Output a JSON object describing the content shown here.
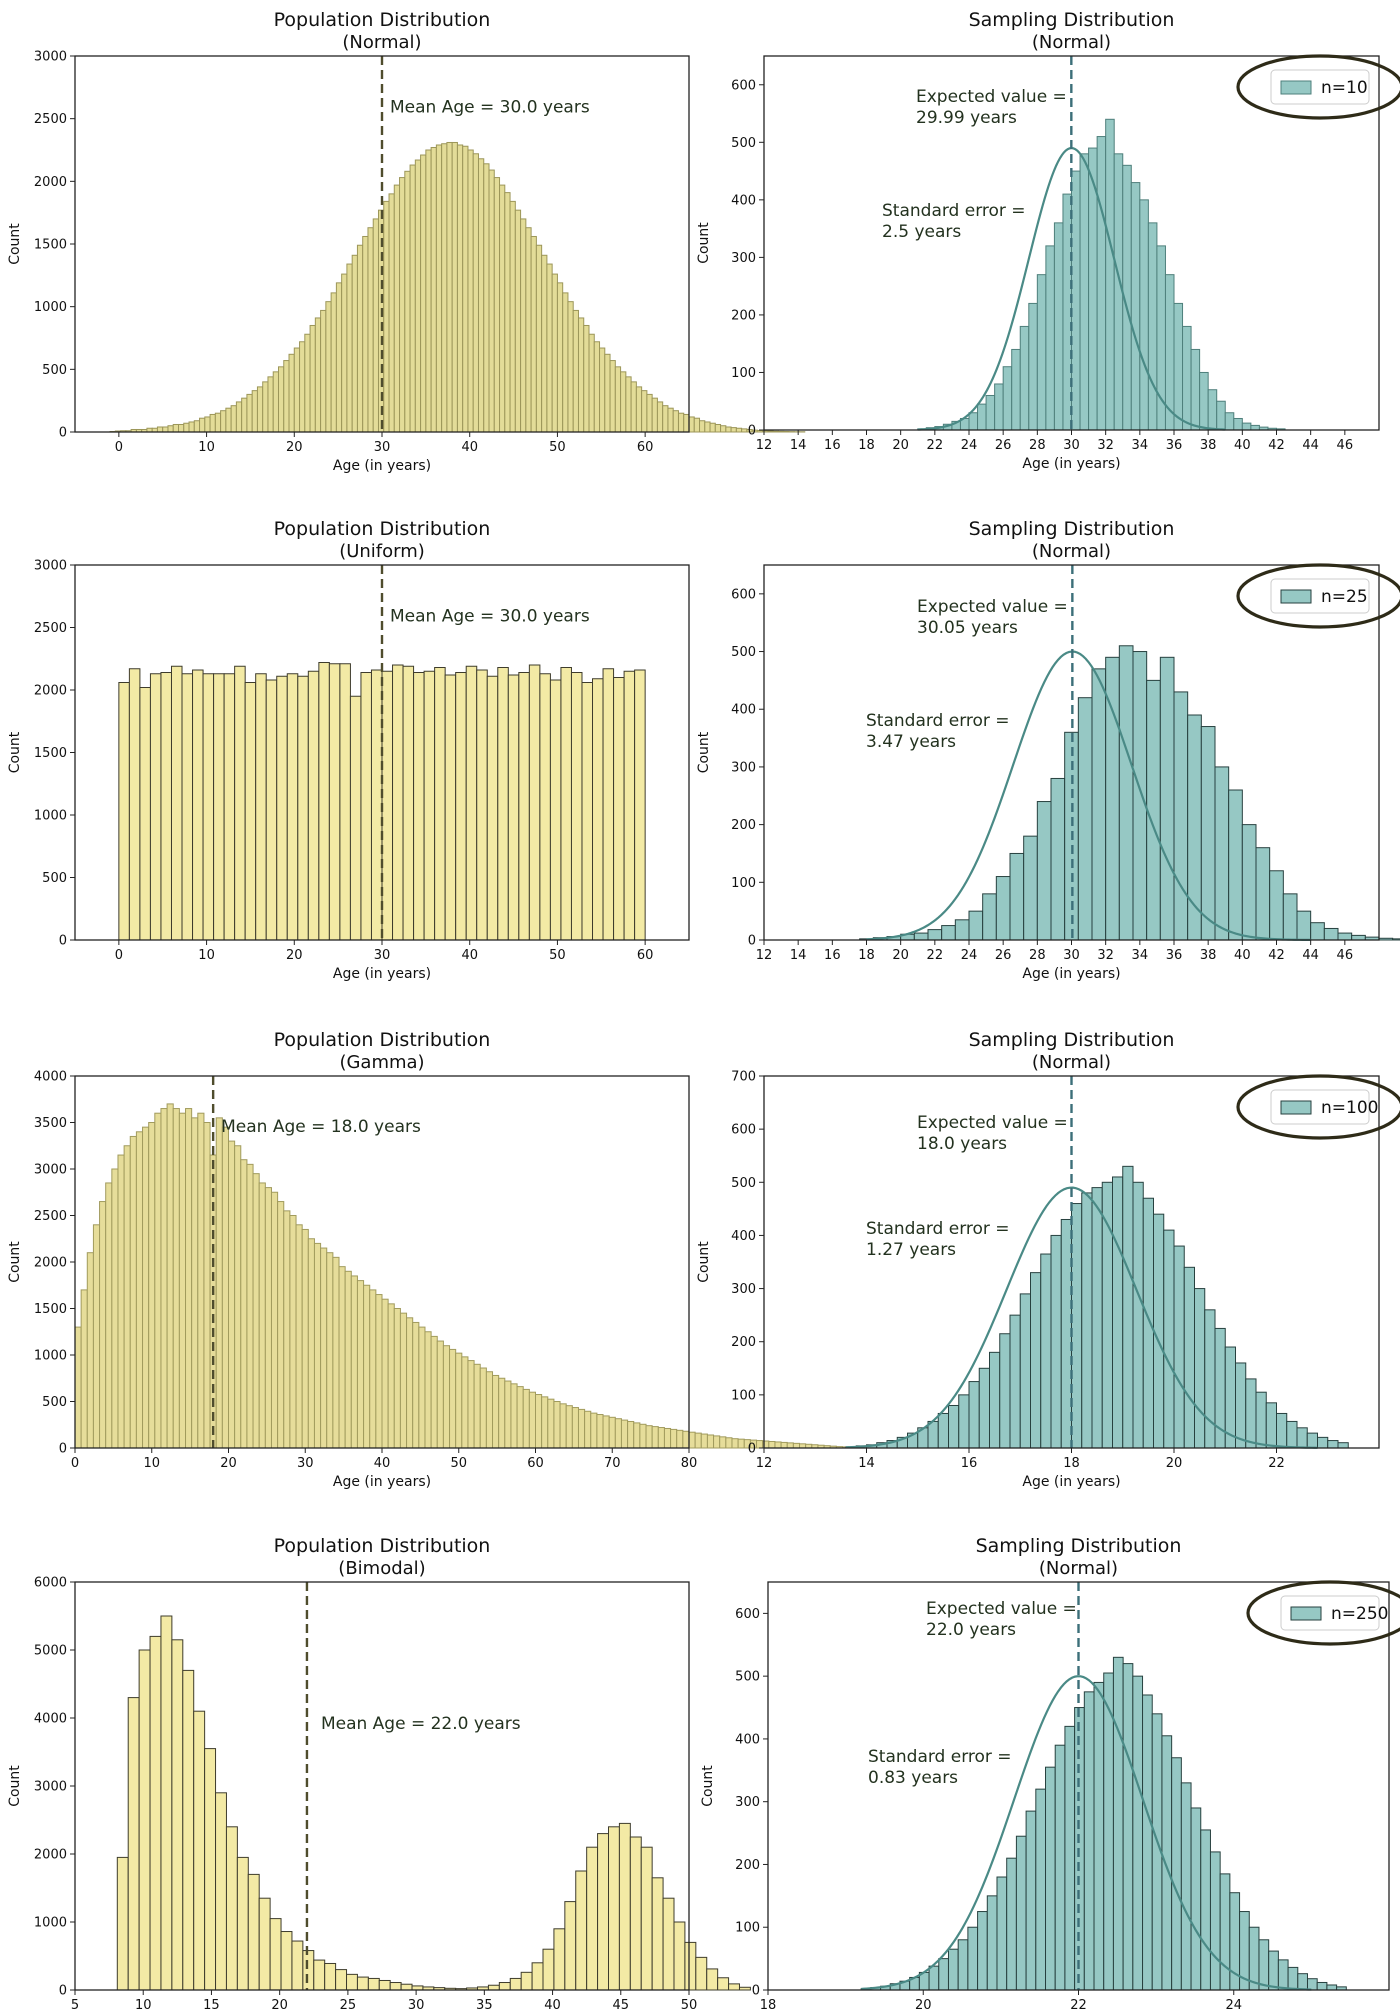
{
  "chart_data": [
    {
      "type": "bar",
      "title": "Population Distribution",
      "subtitle": "(Normal)",
      "xlabel": "Age (in years)",
      "ylabel": "Count",
      "xlim": [
        -5,
        65
      ],
      "ylim": [
        0,
        3000
      ],
      "xticks": [
        0,
        10,
        20,
        30,
        40,
        50,
        60
      ],
      "yticks": [
        0,
        500,
        1000,
        1500,
        2000,
        2500,
        3000
      ],
      "bar_color": "#e3dc98",
      "edge_color": "#9c9659",
      "bins": {
        "start": -1,
        "width": 0.6,
        "values": [
          4,
          8,
          10,
          10,
          20,
          20,
          20,
          30,
          30,
          40,
          40,
          50,
          60,
          60,
          70,
          80,
          90,
          110,
          120,
          140,
          150,
          170,
          190,
          210,
          240,
          270,
          300,
          330,
          360,
          400,
          440,
          480,
          520,
          570,
          620,
          670,
          720,
          780,
          850,
          910,
          970,
          1040,
          1110,
          1190,
          1260,
          1340,
          1410,
          1490,
          1560,
          1630,
          1700,
          1770,
          1840,
          1900,
          1970,
          2030,
          2080,
          2130,
          2170,
          2210,
          2250,
          2270,
          2290,
          2300,
          2310,
          2310,
          2290,
          2280,
          2250,
          2220,
          2180,
          2140,
          2090,
          2030,
          1970,
          1910,
          1840,
          1770,
          1700,
          1630,
          1560,
          1490,
          1410,
          1340,
          1260,
          1190,
          1110,
          1040,
          970,
          910,
          850,
          780,
          720,
          670,
          620,
          570,
          520,
          480,
          440,
          400,
          360,
          330,
          300,
          270,
          240,
          210,
          190,
          170,
          150,
          140,
          120,
          110,
          90,
          80,
          70,
          60,
          50,
          40,
          35,
          30,
          25,
          20,
          15,
          12,
          10,
          8,
          6,
          5,
          4,
          3,
          2,
          2
        ]
      },
      "mean_line": 30.0,
      "annotations": [
        "Mean Age = 30.0 years"
      ]
    },
    {
      "type": "bar",
      "title": "Sampling Distribution",
      "subtitle": "(Normal)",
      "xlabel": "Age (in years)",
      "ylabel": "Count",
      "xlim": [
        12,
        48
      ],
      "ylim": [
        0,
        650
      ],
      "xticks": [
        12,
        14,
        16,
        18,
        20,
        22,
        24,
        26,
        28,
        30,
        32,
        34,
        36,
        38,
        40,
        42,
        44,
        46
      ],
      "yticks": [
        0,
        100,
        200,
        300,
        400,
        500,
        600
      ],
      "bar_color": "#96c8c4",
      "edge_color": "#4e7f7b",
      "curve_color": "#4a8a86",
      "legend": "n=10",
      "legend_position": "top-right",
      "bins": {
        "start": 21,
        "width": 0.5,
        "values": [
          2,
          4,
          6,
          10,
          15,
          20,
          30,
          45,
          60,
          80,
          110,
          140,
          180,
          220,
          270,
          320,
          360,
          410,
          450,
          480,
          490,
          510,
          540,
          480,
          460,
          430,
          400,
          360,
          320,
          270,
          220,
          180,
          140,
          100,
          70,
          50,
          30,
          20,
          12,
          8,
          5,
          3,
          2
        ]
      },
      "curve": {
        "mean": 30,
        "sd": 2.5,
        "peak": 490,
        "from": 21,
        "to": 39
      },
      "mean_line": 29.99,
      "annotations": [
        "Expected value =",
        "29.99 years",
        "Standard error =",
        "2.5 years"
      ]
    },
    {
      "type": "bar",
      "title": "Population Distribution",
      "subtitle": "(Uniform)",
      "xlabel": "Age (in years)",
      "ylabel": "Count",
      "xlim": [
        -5,
        65
      ],
      "ylim": [
        0,
        3000
      ],
      "xticks": [
        0,
        10,
        20,
        30,
        40,
        50,
        60
      ],
      "yticks": [
        0,
        500,
        1000,
        1500,
        2000,
        2500,
        3000
      ],
      "bar_color": "#f3eaa5",
      "edge_color": "#3e3c2c",
      "bins": {
        "start": 0,
        "width": 1.2,
        "values": [
          2060,
          2170,
          2020,
          2130,
          2140,
          2190,
          2130,
          2160,
          2130,
          2130,
          2130,
          2190,
          2060,
          2130,
          2080,
          2110,
          2130,
          2110,
          2150,
          2220,
          2210,
          2210,
          1950,
          2140,
          2160,
          2150,
          2200,
          2190,
          2140,
          2150,
          2180,
          2120,
          2140,
          2190,
          2160,
          2110,
          2180,
          2120,
          2140,
          2200,
          2130,
          2080,
          2180,
          2140,
          2060,
          2090,
          2170,
          2100,
          2150,
          2160
        ]
      },
      "mean_line": 30.0,
      "annotations": [
        "Mean Age = 30.0 years"
      ]
    },
    {
      "type": "bar",
      "title": "Sampling Distribution",
      "subtitle": "(Normal)",
      "xlabel": "Age (in years)",
      "ylabel": "Count",
      "xlim": [
        12,
        48
      ],
      "ylim": [
        0,
        650
      ],
      "xticks": [
        12,
        14,
        16,
        18,
        20,
        22,
        24,
        26,
        28,
        30,
        32,
        34,
        36,
        38,
        40,
        42,
        44,
        46
      ],
      "yticks": [
        0,
        100,
        200,
        300,
        400,
        500,
        600
      ],
      "bar_color": "#96c8c4",
      "edge_color": "#27413f",
      "curve_color": "#4a8a86",
      "legend": "n=25",
      "legend_position": "top-right",
      "bins": {
        "start": 17.6,
        "width": 0.8,
        "values": [
          2,
          4,
          6,
          10,
          12,
          18,
          25,
          35,
          50,
          80,
          110,
          150,
          180,
          240,
          280,
          360,
          420,
          470,
          490,
          510,
          500,
          450,
          490,
          430,
          390,
          370,
          300,
          260,
          200,
          160,
          120,
          80,
          50,
          30,
          20,
          12,
          8,
          5,
          3,
          2
        ]
      },
      "curve": {
        "mean": 30.05,
        "sd": 3.47,
        "peak": 500,
        "from": 18,
        "to": 44
      },
      "mean_line": 30.05,
      "annotations": [
        "Expected value =",
        "30.05 years",
        "Standard error =",
        "3.47 years"
      ]
    },
    {
      "type": "bar",
      "title": "Population Distribution",
      "subtitle": "(Gamma)",
      "xlabel": "Age (in years)",
      "ylabel": "Count",
      "xlim": [
        0,
        80
      ],
      "ylim": [
        0,
        4000
      ],
      "xticks": [
        0,
        10,
        20,
        30,
        40,
        50,
        60,
        70,
        80
      ],
      "yticks": [
        0,
        500,
        1000,
        1500,
        2000,
        2500,
        3000,
        3500,
        4000
      ],
      "bar_color": "#e6dd9a",
      "edge_color": "#a19b5d",
      "bins": {
        "start": 0,
        "width": 0.8,
        "values": [
          1300,
          1700,
          2100,
          2400,
          2650,
          2850,
          3000,
          3150,
          3250,
          3350,
          3400,
          3450,
          3500,
          3600,
          3650,
          3700,
          3650,
          3600,
          3650,
          3550,
          3600,
          3500,
          3150,
          3550,
          3450,
          3300,
          3250,
          3100,
          3050,
          2950,
          2850,
          2800,
          2750,
          2650,
          2550,
          2500,
          2400,
          2350,
          2250,
          2200,
          2150,
          2100,
          2050,
          1950,
          1900,
          1850,
          1800,
          1750,
          1700,
          1650,
          1600,
          1550,
          1500,
          1450,
          1400,
          1350,
          1300,
          1250,
          1200,
          1150,
          1100,
          1060,
          1020,
          980,
          940,
          900,
          860,
          820,
          780,
          750,
          720,
          690,
          660,
          630,
          600,
          575,
          550,
          525,
          500,
          475,
          455,
          435,
          415,
          395,
          375,
          360,
          345,
          330,
          315,
          300,
          285,
          270,
          255,
          240,
          230,
          220,
          210,
          200,
          190,
          180,
          170,
          160,
          150,
          140,
          130,
          120,
          110,
          100,
          95,
          90,
          85,
          80,
          75,
          70,
          65,
          60,
          55,
          50,
          45,
          40,
          35,
          30,
          25,
          20,
          15,
          12,
          10,
          8,
          6,
          4,
          3,
          2,
          2,
          1,
          1,
          1,
          1,
          1,
          1,
          1
        ]
      },
      "mean_line": 18.0,
      "annotations": [
        "Mean Age = 18.0 years"
      ]
    },
    {
      "type": "bar",
      "title": "Sampling Distribution",
      "subtitle": "(Normal)",
      "xlabel": "Age (in years)",
      "ylabel": "Count",
      "xlim": [
        12,
        24
      ],
      "ylim": [
        0,
        700
      ],
      "xticks": [
        12,
        14,
        16,
        18,
        20,
        22
      ],
      "yticks": [
        0,
        100,
        200,
        300,
        400,
        500,
        600,
        700
      ],
      "bar_color": "#96c8c4",
      "edge_color": "#27413f",
      "curve_color": "#4a8a86",
      "legend": "n=100",
      "legend_position": "top-right",
      "bins": {
        "start": 13.6,
        "width": 0.2,
        "values": [
          2,
          4,
          6,
          10,
          14,
          20,
          28,
          38,
          50,
          65,
          80,
          100,
          125,
          150,
          180,
          215,
          250,
          290,
          330,
          365,
          400,
          430,
          460,
          480,
          490,
          500,
          510,
          530,
          500,
          470,
          440,
          410,
          380,
          340,
          300,
          260,
          225,
          190,
          160,
          130,
          105,
          85,
          65,
          50,
          38,
          28,
          20,
          14,
          10
        ]
      },
      "curve": {
        "mean": 18.0,
        "sd": 1.27,
        "peak": 490,
        "from": 13.6,
        "to": 22.8
      },
      "mean_line": 18.0,
      "annotations": [
        "Expected value =",
        "18.0 years",
        "Standard error =",
        "1.27 years"
      ]
    },
    {
      "type": "bar",
      "title": "Population Distribution",
      "subtitle": "(Bimodal)",
      "xlabel": "Age (in years)",
      "ylabel": "Count",
      "xlim": [
        5,
        50
      ],
      "ylim": [
        0,
        6000
      ],
      "xticks": [
        5,
        10,
        15,
        20,
        25,
        30,
        35,
        40,
        45,
        50
      ],
      "yticks": [
        0,
        1000,
        2000,
        3000,
        4000,
        5000,
        6000
      ],
      "bar_color": "#f3eaa5",
      "edge_color": "#3e3c2c",
      "bins": {
        "start": 8.1,
        "width": 0.8,
        "values": [
          1950,
          4300,
          5000,
          5200,
          5500,
          5150,
          4700,
          4100,
          3550,
          2900,
          2400,
          1950,
          1700,
          1350,
          1050,
          860,
          720,
          580,
          440,
          390,
          300,
          230,
          190,
          170,
          140,
          110,
          85,
          60,
          45,
          35,
          25,
          20,
          30,
          45,
          70,
          110,
          170,
          260,
          400,
          600,
          900,
          1300,
          1750,
          2100,
          2300,
          2400,
          2450,
          2250,
          2100,
          1650,
          1350,
          1000,
          700,
          480,
          310,
          180,
          90,
          40
        ]
      },
      "mean_line": 22.0,
      "annotations": [
        "Mean Age = 22.0 years"
      ]
    },
    {
      "type": "bar",
      "title": "Sampling Distribution",
      "subtitle": "(Normal)",
      "xlabel": "Age (in years)",
      "ylabel": "Count",
      "xlim": [
        18,
        26
      ],
      "ylim": [
        0,
        650
      ],
      "xticks": [
        18,
        20,
        22,
        24
      ],
      "yticks": [
        0,
        100,
        200,
        300,
        400,
        500,
        600
      ],
      "bar_color": "#96c8c4",
      "edge_color": "#27413f",
      "curve_color": "#4a8a86",
      "legend": "n=250",
      "legend_position": "top-right",
      "bins": {
        "start": 19.2,
        "width": 0.125,
        "values": [
          2,
          4,
          6,
          10,
          14,
          20,
          28,
          38,
          50,
          65,
          80,
          100,
          125,
          150,
          180,
          210,
          245,
          285,
          320,
          355,
          390,
          420,
          450,
          475,
          490,
          505,
          530,
          520,
          500,
          470,
          440,
          405,
          370,
          330,
          290,
          255,
          220,
          185,
          155,
          125,
          100,
          80,
          62,
          48,
          36,
          26,
          18,
          12,
          8,
          5
        ]
      },
      "curve": {
        "mean": 22.0,
        "sd": 0.83,
        "peak": 500,
        "from": 19.2,
        "to": 25
      },
      "mean_line": 22.0,
      "annotations": [
        "Expected value =",
        "22.0 years",
        "Standard error =",
        "0.83 years"
      ]
    }
  ]
}
